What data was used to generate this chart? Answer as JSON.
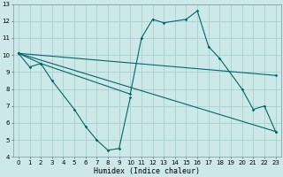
{
  "xlabel": "Humidex (Indice chaleur)",
  "xlim": [
    -0.5,
    23.5
  ],
  "ylim": [
    4,
    13
  ],
  "xticks": [
    0,
    1,
    2,
    3,
    4,
    5,
    6,
    7,
    8,
    9,
    10,
    11,
    12,
    13,
    14,
    15,
    16,
    17,
    18,
    19,
    20,
    21,
    22,
    23
  ],
  "yticks": [
    4,
    5,
    6,
    7,
    8,
    9,
    10,
    11,
    12,
    13
  ],
  "bg_color": "#cce8e8",
  "grid_color": "#aad0d0",
  "line_color": "#006868",
  "line1_x": [
    0,
    1,
    2,
    3,
    5,
    6,
    7,
    8,
    9,
    10
  ],
  "line1_y": [
    10.1,
    9.3,
    9.5,
    8.5,
    6.8,
    5.8,
    5.0,
    4.4,
    4.5,
    7.5
  ],
  "line2_x": [
    0,
    2,
    10,
    11,
    12,
    13,
    15,
    16,
    17,
    18,
    20,
    21,
    22,
    23
  ],
  "line2_y": [
    10.1,
    9.5,
    7.7,
    11.0,
    12.1,
    11.9,
    12.1,
    12.6,
    10.5,
    9.8,
    8.0,
    6.8,
    7.0,
    5.5
  ],
  "line3_x": [
    0,
    23
  ],
  "line3_y": [
    10.1,
    8.8
  ],
  "line4_x": [
    0,
    23
  ],
  "line4_y": [
    10.1,
    5.5
  ],
  "tick_fontsize": 5.0,
  "xlabel_fontsize": 6.0,
  "linewidth": 0.8,
  "markersize": 1.8
}
